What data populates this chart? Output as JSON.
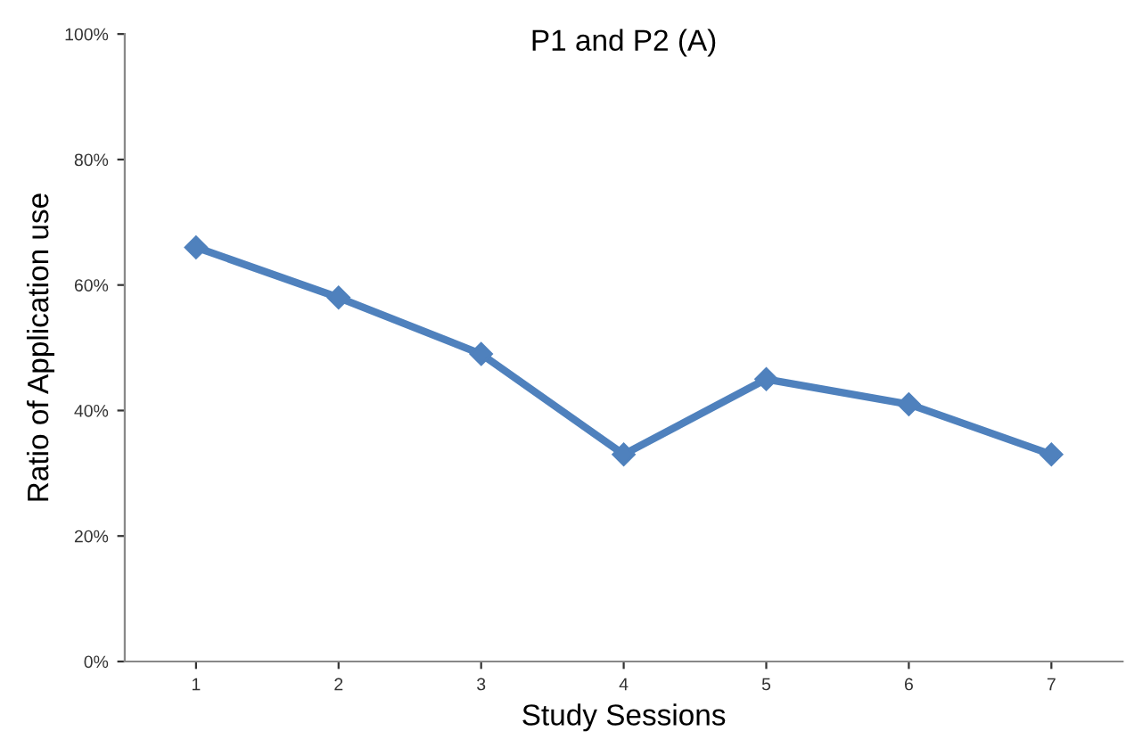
{
  "chart_data": {
    "type": "line",
    "title": "P1 and P2 (A)",
    "xlabel": "Study Sessions",
    "ylabel": "Ratio of Application use",
    "categories": [
      "1",
      "2",
      "3",
      "4",
      "5",
      "6",
      "7"
    ],
    "series": [
      {
        "color": "#4f81bd",
        "values": [
          66,
          58,
          49,
          33,
          45,
          41,
          33
        ]
      }
    ],
    "ylim": [
      0,
      100
    ],
    "yticks": [
      {
        "value": 0,
        "label": "0%"
      },
      {
        "value": 20,
        "label": "20%"
      },
      {
        "value": 40,
        "label": "40%"
      },
      {
        "value": 60,
        "label": "60%"
      },
      {
        "value": 80,
        "label": "80%"
      },
      {
        "value": 100,
        "label": "100%"
      }
    ],
    "marker": "diamond",
    "line_style": "solid",
    "grid": false,
    "legend": false
  }
}
